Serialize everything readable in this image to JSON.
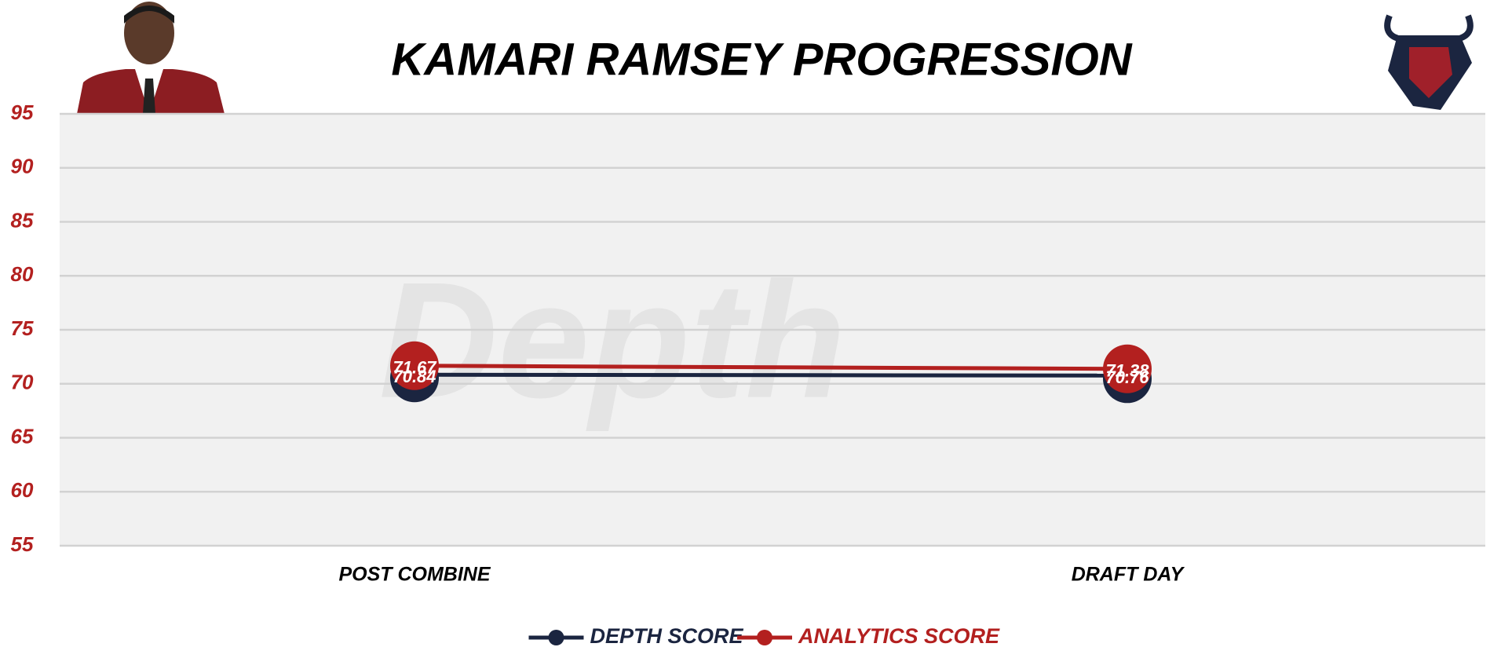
{
  "chart_data": {
    "type": "line",
    "title": "KAMARI RAMSEY PROGRESSION",
    "watermark": "Depth",
    "categories": [
      "POST COMBINE",
      "DRAFT DAY"
    ],
    "series": [
      {
        "name": "DEPTH SCORE",
        "color": "#1b2540",
        "values": [
          70.84,
          70.76
        ]
      },
      {
        "name": "ANALYTICS SCORE",
        "color": "#b3201f",
        "values": [
          71.67,
          71.38
        ]
      }
    ],
    "ylim": [
      55,
      95
    ],
    "yticks": [
      55,
      60,
      65,
      70,
      75,
      80,
      85,
      90,
      95
    ],
    "grid": true,
    "tick_color": "#b3201f"
  }
}
